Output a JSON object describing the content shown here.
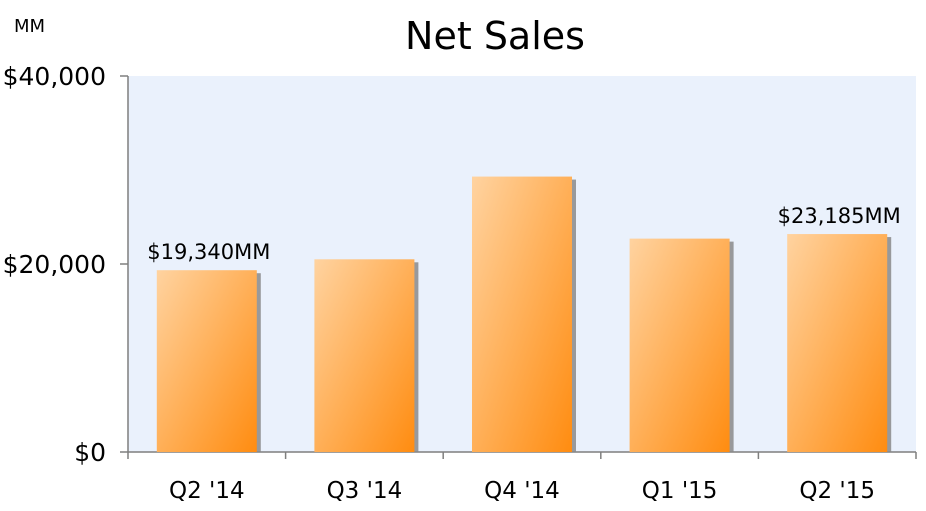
{
  "chart_data": {
    "type": "bar",
    "title": "Net Sales",
    "unit_label": "MM",
    "categories": [
      "Q2 '14",
      "Q3 '14",
      "Q4 '14",
      "Q1 '15",
      "Q2 '15"
    ],
    "values": [
      19340,
      20500,
      29300,
      22700,
      23185
    ],
    "data_labels": [
      "$19,340MM",
      "",
      "",
      "",
      "$23,185MM"
    ],
    "ylim": [
      0,
      40000
    ],
    "y_ticks": [
      {
        "value": 0,
        "label": "$0"
      },
      {
        "value": 20000,
        "label": "$20,000"
      },
      {
        "value": 40000,
        "label": "$40,000"
      }
    ],
    "grid": false,
    "legend": "none",
    "colors": {
      "plot_background": "#EAF1FC",
      "bar_light": "#FFD3A0",
      "bar_dark": "#FF8C10",
      "bar_shadow": "#8A8A8A",
      "axis": "#7F7F7F"
    }
  }
}
